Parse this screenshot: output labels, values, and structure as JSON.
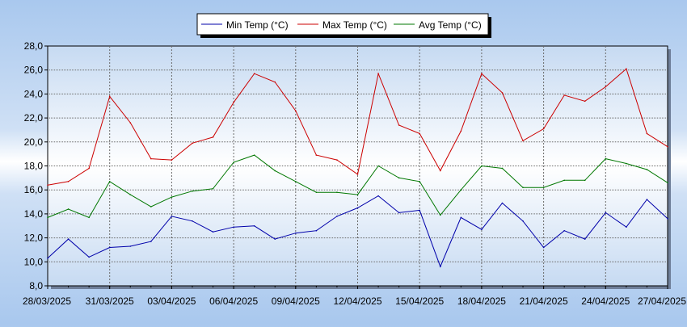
{
  "chart_data": {
    "type": "line",
    "title": "",
    "xlabel": "",
    "ylabel": "",
    "ylim": [
      8.0,
      28.0
    ],
    "grid": true,
    "legend_position": "top",
    "y_ticks": [
      "8,0",
      "10,0",
      "12,0",
      "14,0",
      "16,0",
      "18,0",
      "20,0",
      "22,0",
      "24,0",
      "26,0",
      "28,0"
    ],
    "x_ticks": [
      "28/03/2025",
      "31/03/2025",
      "03/04/2025",
      "06/04/2025",
      "09/04/2025",
      "12/04/2025",
      "15/04/2025",
      "18/04/2025",
      "21/04/2025",
      "24/04/2025",
      "27/04/2025"
    ],
    "x": [
      "28/03/2025",
      "29/03/2025",
      "30/03/2025",
      "31/03/2025",
      "01/04/2025",
      "02/04/2025",
      "03/04/2025",
      "04/04/2025",
      "05/04/2025",
      "06/04/2025",
      "07/04/2025",
      "08/04/2025",
      "09/04/2025",
      "10/04/2025",
      "11/04/2025",
      "12/04/2025",
      "13/04/2025",
      "14/04/2025",
      "15/04/2025",
      "16/04/2025",
      "17/04/2025",
      "18/04/2025",
      "19/04/2025",
      "20/04/2025",
      "21/04/2025",
      "22/04/2025",
      "23/04/2025",
      "24/04/2025",
      "25/04/2025",
      "26/04/2025",
      "27/04/2025"
    ],
    "series": [
      {
        "name": "Min Temp (°C)",
        "color": "#0000aa",
        "values": [
          10.3,
          11.9,
          10.4,
          11.2,
          11.3,
          11.7,
          13.8,
          13.4,
          12.5,
          12.9,
          13.0,
          11.9,
          12.4,
          12.6,
          13.8,
          14.5,
          15.5,
          14.1,
          14.3,
          9.6,
          13.7,
          12.7,
          14.9,
          13.4,
          11.2,
          12.6,
          11.9,
          14.1,
          12.9,
          15.2,
          13.6
        ]
      },
      {
        "name": "Max Temp (°C)",
        "color": "#cc0000",
        "values": [
          16.4,
          16.7,
          17.8,
          23.8,
          21.6,
          18.6,
          18.5,
          19.9,
          20.4,
          23.3,
          25.7,
          25.0,
          22.6,
          18.9,
          18.5,
          17.3,
          25.7,
          21.4,
          20.7,
          17.6,
          20.9,
          25.7,
          24.1,
          20.1,
          21.1,
          23.9,
          23.4,
          24.6,
          26.1,
          20.7,
          19.6
        ]
      },
      {
        "name": "Avg Temp (°C)",
        "color": "#007700",
        "values": [
          13.7,
          14.4,
          13.7,
          16.7,
          15.6,
          14.6,
          15.4,
          15.9,
          16.1,
          18.3,
          18.9,
          17.6,
          16.7,
          15.8,
          15.8,
          15.6,
          18.0,
          17.0,
          16.7,
          13.9,
          16.0,
          18.0,
          17.8,
          16.2,
          16.2,
          16.8,
          16.8,
          18.6,
          18.2,
          17.7,
          16.6
        ]
      }
    ]
  }
}
